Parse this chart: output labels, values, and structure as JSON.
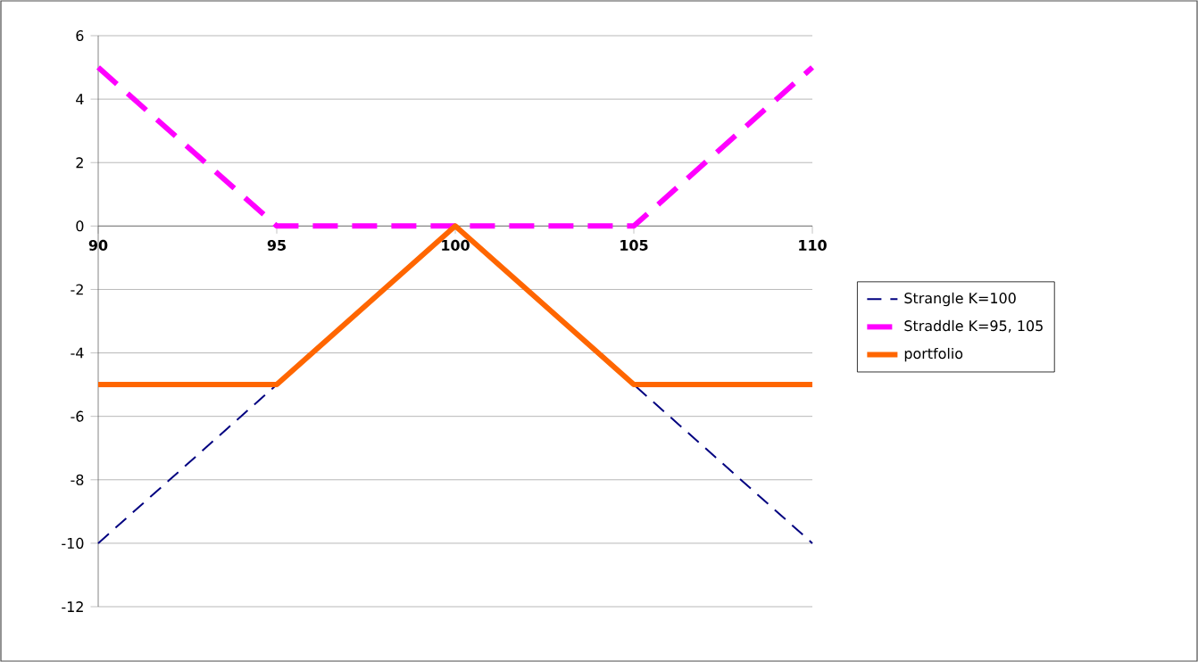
{
  "chart_data": {
    "type": "line",
    "x": [
      90,
      95,
      100,
      105,
      110
    ],
    "series": [
      {
        "name": "Strangle K=100",
        "color": "#000080",
        "values": [
          -10,
          -5,
          0,
          -5,
          -10
        ],
        "line_style": "dashed"
      },
      {
        "name": "Straddle K=95, 105",
        "color": "#ff00ff",
        "values": [
          5,
          0,
          0,
          0,
          5
        ],
        "line_style": "dashed"
      },
      {
        "name": "portfolio",
        "color": "#ff6600",
        "values": [
          -5,
          -5,
          0,
          -5,
          -5
        ],
        "line_style": "solid"
      }
    ],
    "xlim": [
      90,
      110
    ],
    "xticks": [
      90,
      95,
      100,
      105,
      110
    ],
    "ylim": [
      -12,
      6
    ],
    "yticks": [
      -12,
      -10,
      -8,
      -6,
      -4,
      -2,
      0,
      2,
      4,
      6
    ],
    "grid": "y",
    "legend": "right",
    "marker": "none"
  }
}
